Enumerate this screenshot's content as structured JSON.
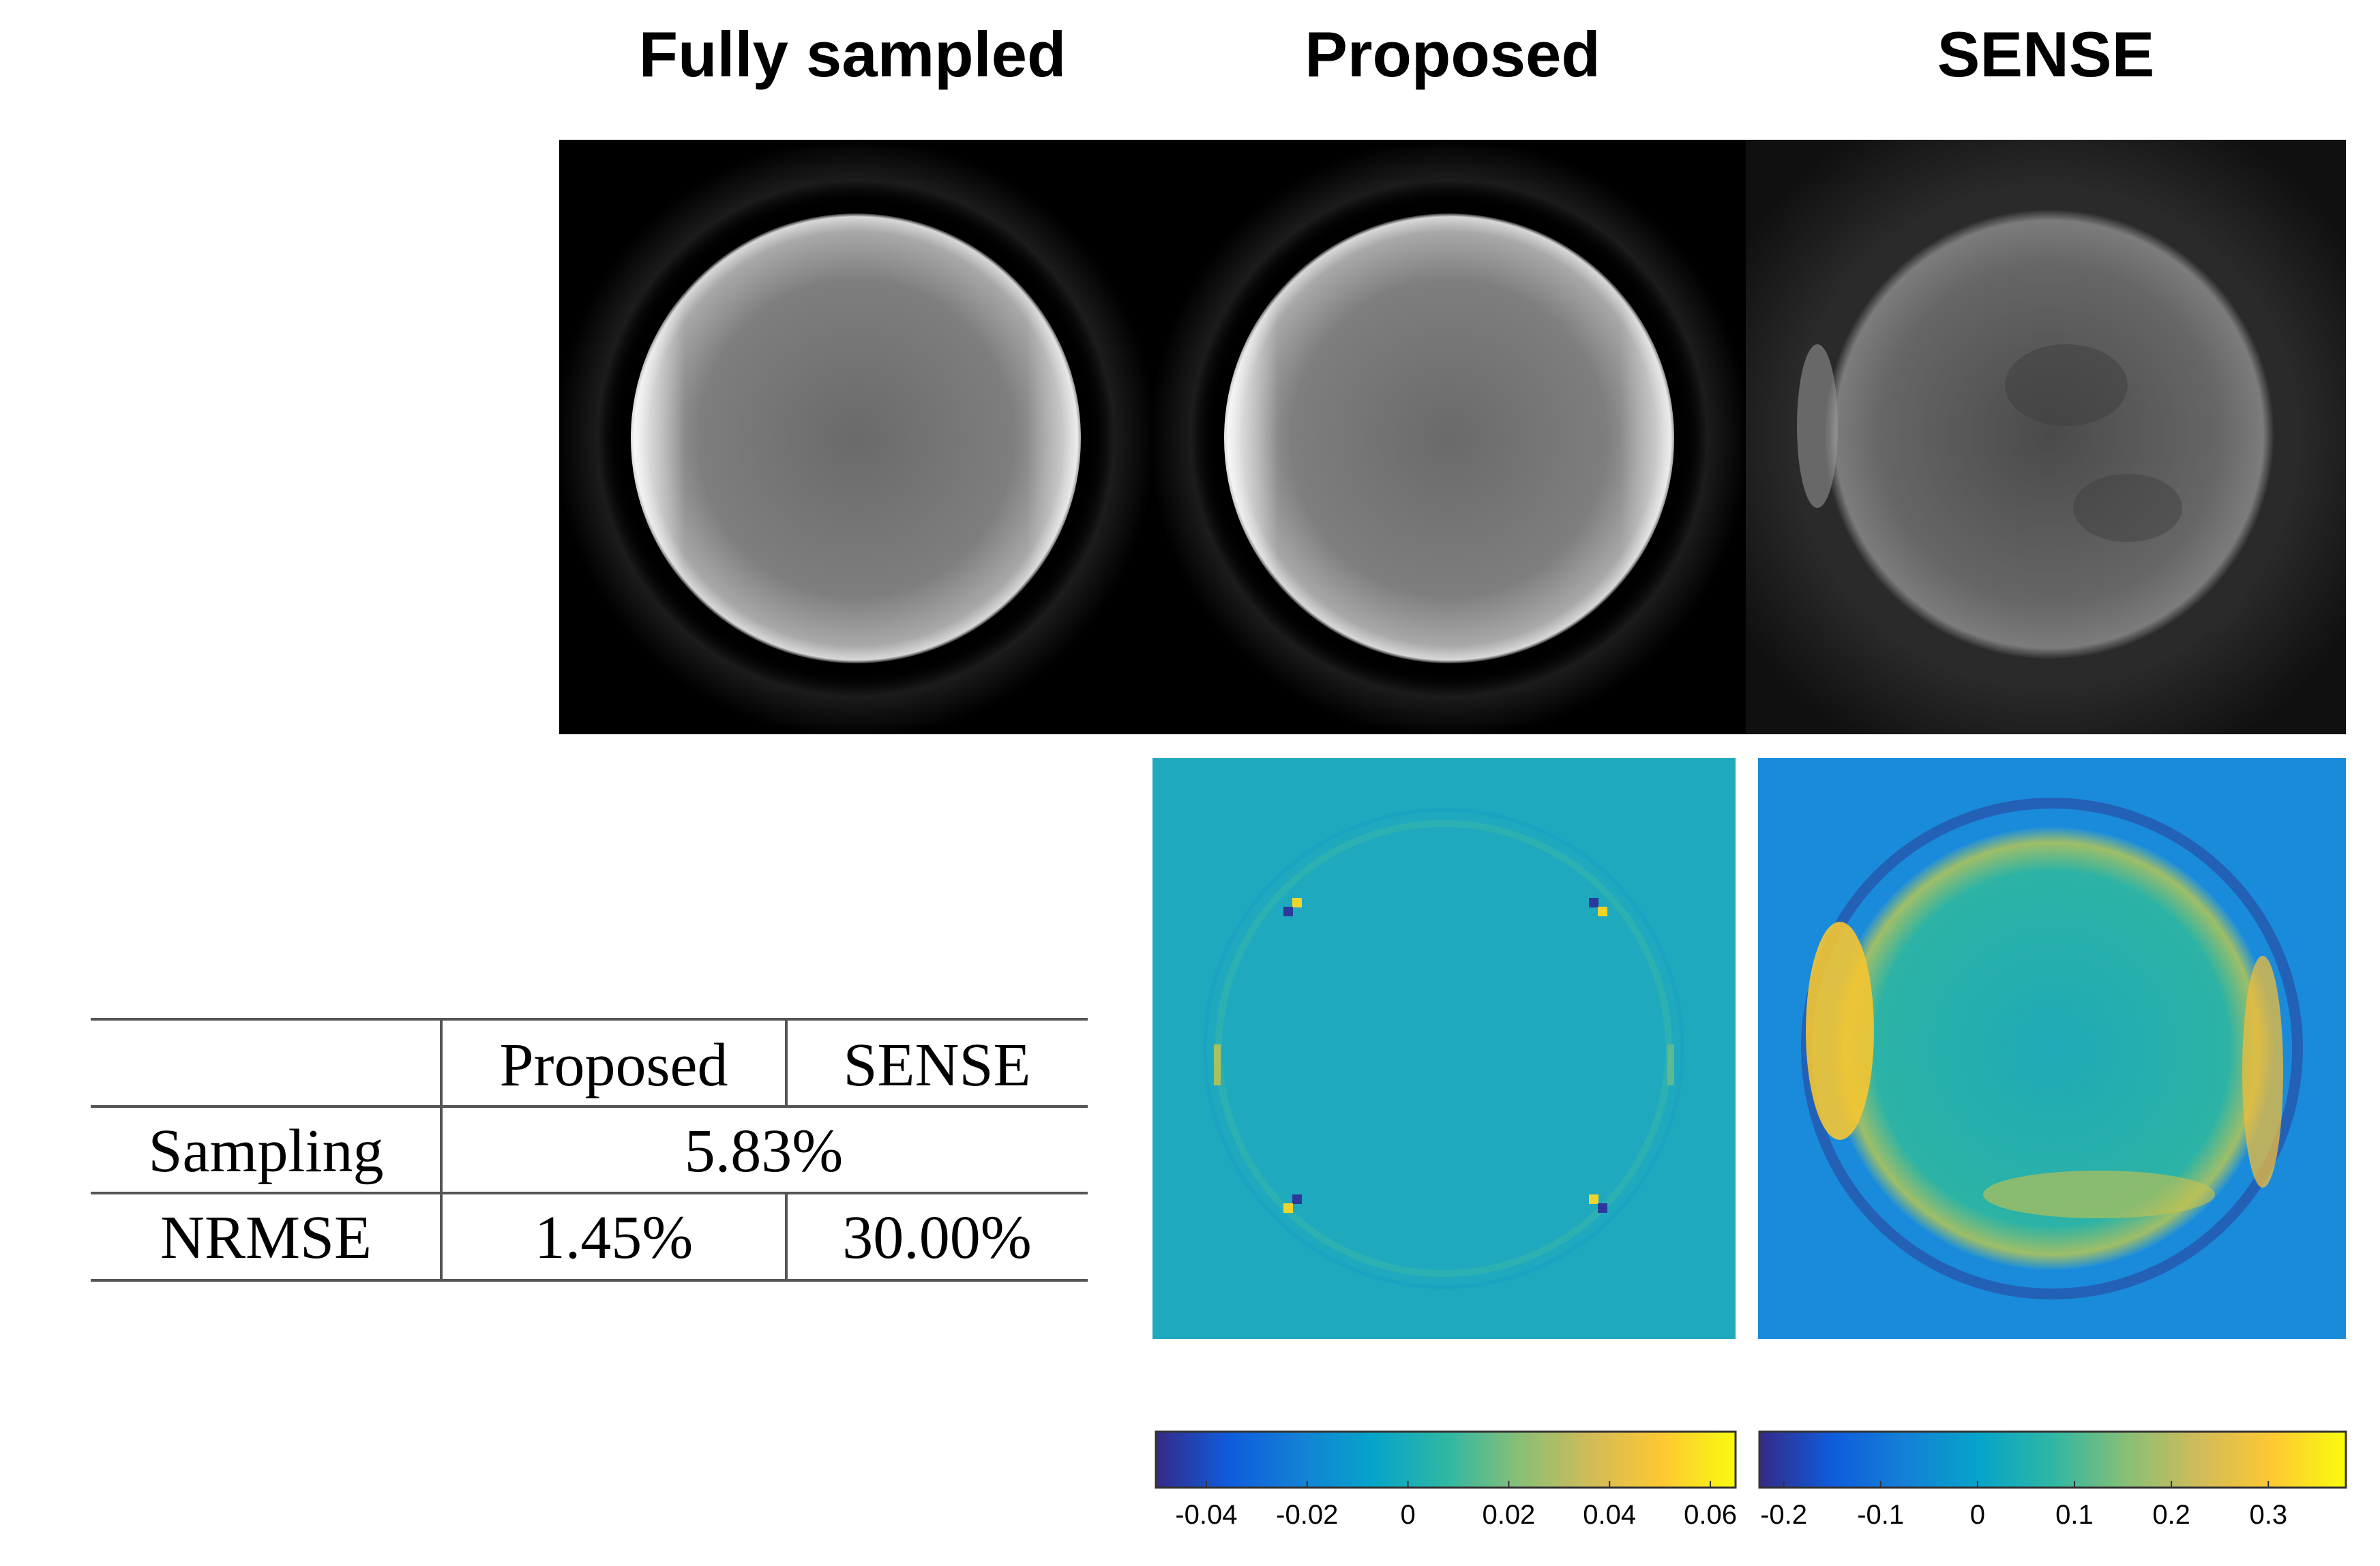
{
  "columns": {
    "fully_sampled": "Fully sampled",
    "proposed": "Proposed",
    "sense": "SENSE"
  },
  "table": {
    "headers": [
      "",
      "Proposed",
      "SENSE"
    ],
    "sampling": {
      "label": "Sampling",
      "value": "5.83%"
    },
    "nrmse": {
      "label": "NRMSE",
      "proposed": "1.45%",
      "sense": "30.00%"
    }
  },
  "colorbars": {
    "proposed": {
      "ticks": [
        "-0.04",
        "-0.02",
        "0",
        "0.02",
        "0.04",
        "0.06"
      ],
      "range": [
        -0.05,
        0.065
      ]
    },
    "sense": {
      "ticks": [
        "-0.2",
        "-0.1",
        "0",
        "0.1",
        "0.2",
        "0.3"
      ],
      "range": [
        -0.225,
        0.38
      ]
    }
  },
  "colors": {
    "parula": [
      "#352a87",
      "#0f5cdd",
      "#1481d6",
      "#06a4ca",
      "#2eb7a4",
      "#87bf77",
      "#d1bb59",
      "#fec832",
      "#f9fb0e"
    ]
  }
}
